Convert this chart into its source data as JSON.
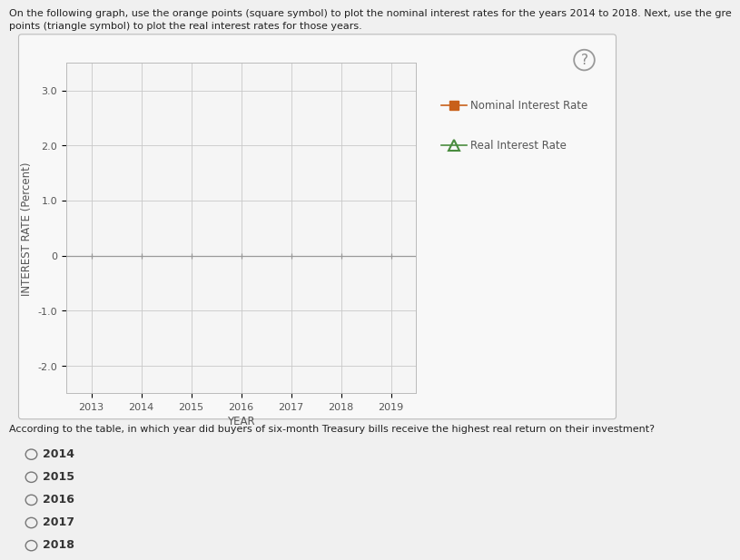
{
  "ylabel": "INTEREST RATE (Percent)",
  "xlabel": "YEAR",
  "xlim": [
    2012.5,
    2019.5
  ],
  "ylim": [
    -2.5,
    3.5
  ],
  "yticks": [
    -2.0,
    -1.0,
    0,
    1.0,
    2.0,
    3.0
  ],
  "xticks": [
    2013,
    2014,
    2015,
    2016,
    2017,
    2018,
    2019
  ],
  "nominal_label": "Nominal Interest Rate",
  "real_label": "Real Interest Rate",
  "nominal_color": "#C8601A",
  "real_color": "#4A8C3F",
  "fig_bg_color": "#E8E8E8",
  "chart_bg_color": "#F0F0F0",
  "plot_bg_color": "#F5F5F5",
  "legend_marker_nominal": "s",
  "legend_marker_real": "^",
  "grid_color": "#C8C8C8",
  "axis_color": "#999999",
  "tick_label_color": "#555555",
  "label_color": "#555555",
  "font_size_axis_label": 8.5,
  "font_size_tick": 8,
  "font_size_legend": 8.5,
  "font_size_question": 8,
  "font_size_answer": 9,
  "instruction_line1": "On the following graph, use the orange points (square symbol) to plot the nominal interest rates for the years 2014 to 2018. Next, use the gre",
  "instruction_line2": "points (triangle symbol) to plot the real interest rates for those years.",
  "question_text": "According to the table, in which year did buyers of six-month Treasury bills receive the highest real return on their investment?",
  "answer_options": [
    "2014",
    "2015",
    "2016",
    "2017",
    "2018"
  ]
}
